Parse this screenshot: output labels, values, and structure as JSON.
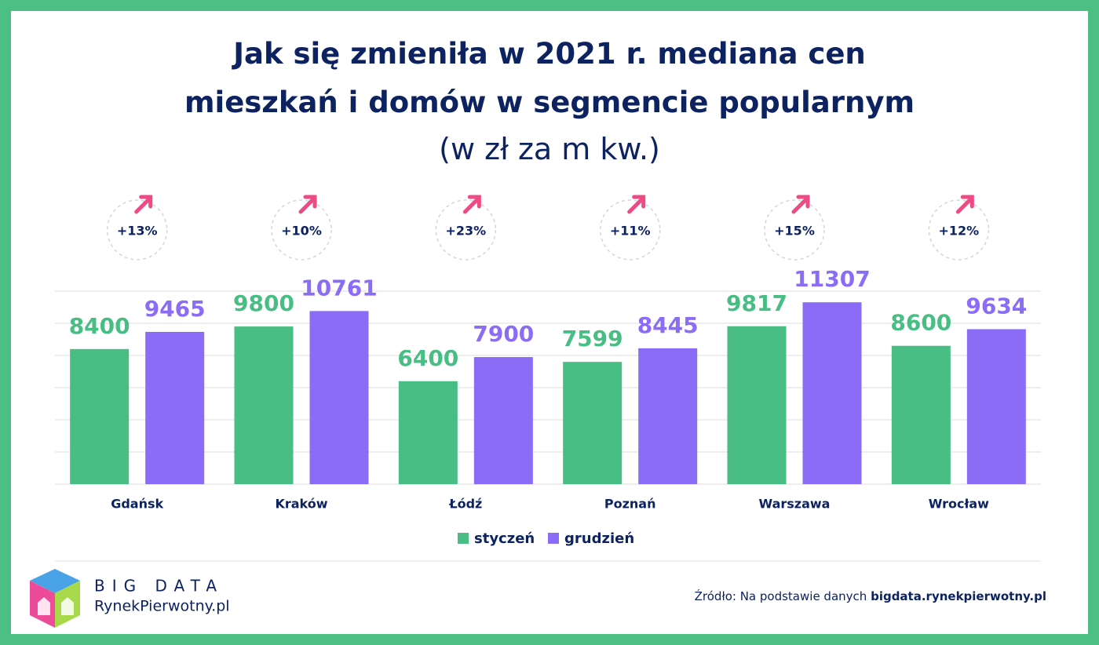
{
  "chart_data": {
    "type": "bar",
    "title": "Jak się zmieniła w 2021 r. mediana cen mieszkań i domów w segmencie popularnym",
    "subtitle": "(w zł za m kw.)",
    "categories": [
      "Gdańsk",
      "Kraków",
      "Łódź",
      "Poznań",
      "Warszawa",
      "Wrocław"
    ],
    "series": [
      {
        "name": "styczeń",
        "color": "#48bd84",
        "values": [
          8400,
          9800,
          6400,
          7599,
          9817,
          8600
        ]
      },
      {
        "name": "grudzień",
        "color": "#8a6cf7",
        "values": [
          9465,
          10761,
          7900,
          8445,
          11307,
          9634
        ]
      }
    ],
    "change_labels": [
      "+13%",
      "+10%",
      "+23%",
      "+11%",
      "+15%",
      "+12%"
    ],
    "ylim": [
      0,
      12000
    ],
    "yticks": [
      0,
      2000,
      4000,
      6000,
      8000,
      10000,
      12000
    ],
    "grid": true
  },
  "footer": {
    "brand_top": "BIG DATA",
    "brand_bottom": "RynekPierwotny.pl",
    "source_prefix": "Źródło: Na podstawie danych",
    "source_site": "bigdata.rynekpierwotny.pl"
  }
}
